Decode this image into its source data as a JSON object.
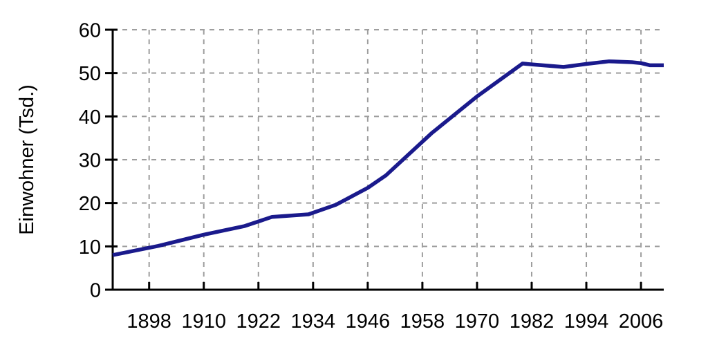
{
  "chart_data": {
    "type": "line",
    "title": "",
    "xlabel": "",
    "ylabel": "Einwohner (Tsd.)",
    "xlim": [
      1890,
      2011
    ],
    "ylim": [
      0,
      60
    ],
    "xticks": [
      1898,
      1910,
      1922,
      1934,
      1946,
      1958,
      1970,
      1982,
      1994,
      2006
    ],
    "yticks": [
      0,
      10,
      20,
      30,
      40,
      50,
      60
    ],
    "grid": true,
    "grid_style": "dashed",
    "legend_position": "none",
    "series": [
      {
        "name": "Einwohner",
        "color": "#1a1a8c",
        "points": [
          [
            1890,
            8.0
          ],
          [
            1900,
            10.1
          ],
          [
            1910,
            12.7
          ],
          [
            1919,
            14.7
          ],
          [
            1925,
            16.8
          ],
          [
            1933,
            17.4
          ],
          [
            1939,
            19.6
          ],
          [
            1946,
            23.5
          ],
          [
            1950,
            26.4
          ],
          [
            1960,
            36.1
          ],
          [
            1970,
            44.6
          ],
          [
            1980,
            52.2
          ],
          [
            1982,
            52.0
          ],
          [
            1989,
            51.4
          ],
          [
            1994,
            52.1
          ],
          [
            1999,
            52.7
          ],
          [
            2004,
            52.5
          ],
          [
            2006,
            52.3
          ],
          [
            2008,
            51.8
          ],
          [
            2011,
            51.8
          ]
        ]
      }
    ],
    "colors": {
      "line": "#1a1a8c",
      "grid": "#9e9e9e",
      "axis": "#000000",
      "text": "#000000",
      "background": "#ffffff"
    }
  }
}
